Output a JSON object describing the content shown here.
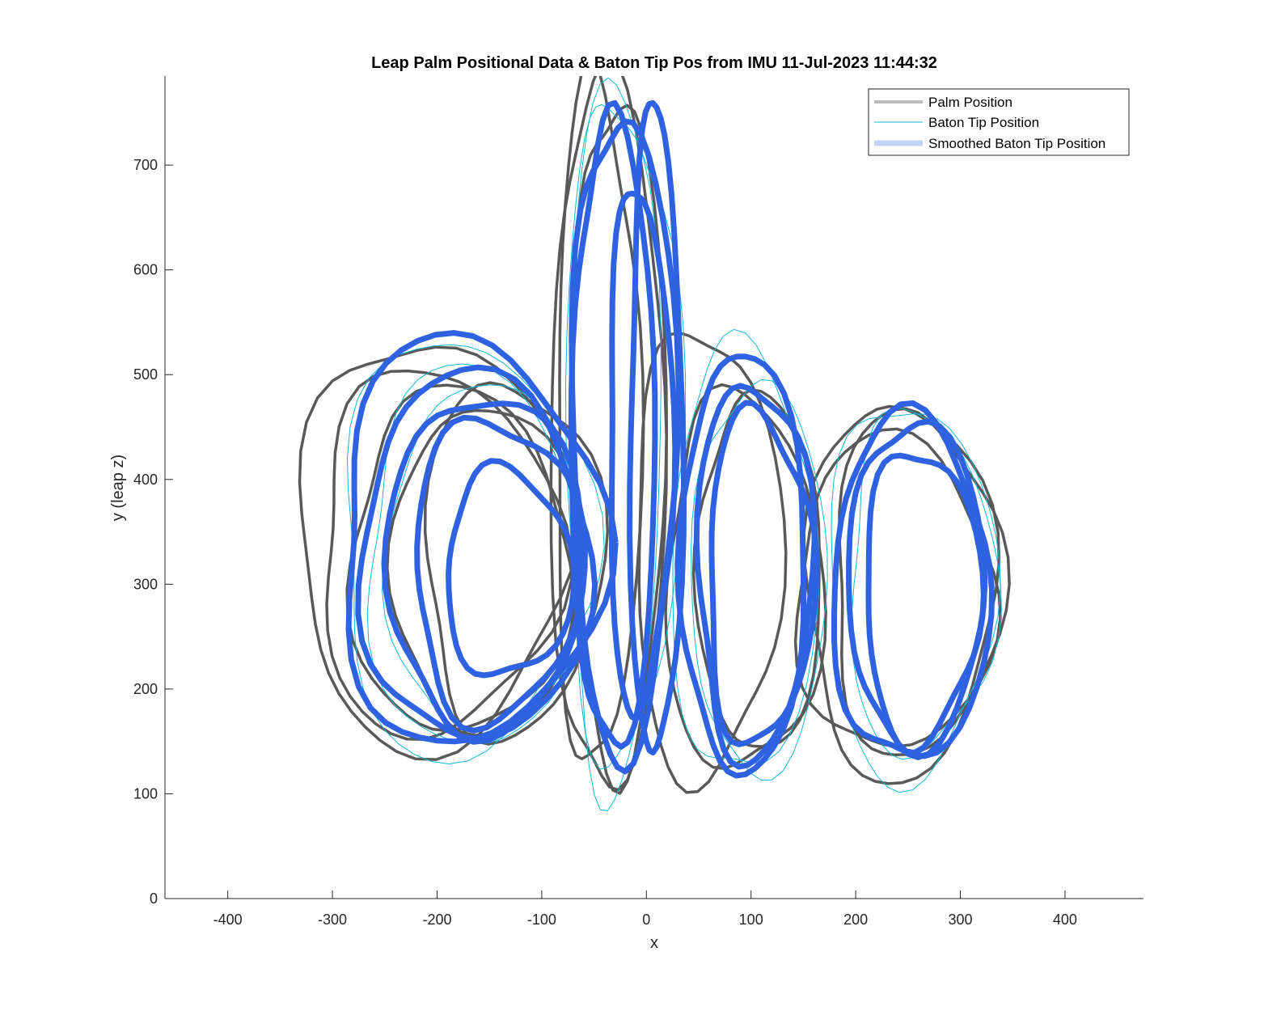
{
  "chart_data": {
    "type": "line",
    "title": "Leap Palm Positional Data & Baton Tip Pos from IMU 11-Jul-2023 11:44:32",
    "xlabel": "x",
    "ylabel": "y (leap z)",
    "xlim": [
      -460,
      475
    ],
    "ylim": [
      0,
      785
    ],
    "xticks": [
      -400,
      -300,
      -200,
      -100,
      0,
      100,
      200,
      300,
      400
    ],
    "yticks": [
      0,
      100,
      200,
      300,
      400,
      500,
      600,
      700
    ],
    "grid": false,
    "legend_position": "top-right",
    "series": [
      {
        "name": "Palm Position",
        "color": "#595959",
        "loops": [
          {
            "cx": -200,
            "cy": 340,
            "rx": 130,
            "ry": 195
          },
          {
            "cx": -195,
            "cy": 330,
            "rx": 115,
            "ry": 175
          },
          {
            "cx": -175,
            "cy": 320,
            "rx": 105,
            "ry": 165
          },
          {
            "cx": -150,
            "cy": 315,
            "rx": 90,
            "ry": 155
          },
          {
            "cx": -125,
            "cy": 325,
            "rx": 85,
            "ry": 170
          },
          {
            "cx": -45,
            "cy": 450,
            "rx": 40,
            "ry": 330
          },
          {
            "cx": -35,
            "cy": 440,
            "rx": 55,
            "ry": 340
          },
          {
            "cx": -25,
            "cy": 445,
            "rx": 45,
            "ry": 320
          },
          {
            "cx": 60,
            "cy": 330,
            "rx": 70,
            "ry": 215
          },
          {
            "cx": 95,
            "cy": 300,
            "rx": 75,
            "ry": 180
          },
          {
            "cx": 110,
            "cy": 310,
            "rx": 60,
            "ry": 170
          },
          {
            "cx": 245,
            "cy": 295,
            "rx": 90,
            "ry": 180
          },
          {
            "cx": 260,
            "cy": 300,
            "rx": 80,
            "ry": 165
          },
          {
            "cx": 240,
            "cy": 290,
            "rx": 95,
            "ry": 150
          }
        ]
      },
      {
        "name": "Baton Tip Position",
        "color": "#12b8d6",
        "loops": [
          {
            "cx": -170,
            "cy": 335,
            "rx": 120,
            "ry": 200
          },
          {
            "cx": -160,
            "cy": 325,
            "rx": 105,
            "ry": 180
          },
          {
            "cx": -150,
            "cy": 320,
            "rx": 95,
            "ry": 170
          },
          {
            "cx": -30,
            "cy": 440,
            "rx": 45,
            "ry": 335
          },
          {
            "cx": -20,
            "cy": 450,
            "rx": 55,
            "ry": 320
          },
          {
            "cx": 95,
            "cy": 320,
            "rx": 70,
            "ry": 205
          },
          {
            "cx": 110,
            "cy": 305,
            "rx": 65,
            "ry": 185
          },
          {
            "cx": 255,
            "cy": 295,
            "rx": 80,
            "ry": 180
          },
          {
            "cx": 265,
            "cy": 300,
            "rx": 70,
            "ry": 165
          }
        ]
      },
      {
        "name": "Smoothed Baton Tip Position",
        "color": "#2f62e0",
        "legend_color": "#c3d3f4",
        "loops": [
          {
            "cx": -165,
            "cy": 340,
            "rx": 125,
            "ry": 195
          },
          {
            "cx": -160,
            "cy": 325,
            "rx": 110,
            "ry": 175
          },
          {
            "cx": -150,
            "cy": 320,
            "rx": 95,
            "ry": 160
          },
          {
            "cx": -140,
            "cy": 315,
            "rx": 80,
            "ry": 145
          },
          {
            "cx": -130,
            "cy": 310,
            "rx": 60,
            "ry": 100
          },
          {
            "cx": -30,
            "cy": 440,
            "rx": 40,
            "ry": 300
          },
          {
            "cx": -20,
            "cy": 445,
            "rx": 50,
            "ry": 305
          },
          {
            "cx": -5,
            "cy": 430,
            "rx": 30,
            "ry": 250
          },
          {
            "cx": 10,
            "cy": 440,
            "rx": 25,
            "ry": 310
          },
          {
            "cx": 95,
            "cy": 320,
            "rx": 60,
            "ry": 200
          },
          {
            "cx": 105,
            "cy": 315,
            "rx": 55,
            "ry": 180
          },
          {
            "cx": 110,
            "cy": 305,
            "rx": 50,
            "ry": 160
          },
          {
            "cx": 255,
            "cy": 295,
            "rx": 75,
            "ry": 165
          },
          {
            "cx": 260,
            "cy": 300,
            "rx": 65,
            "ry": 155
          },
          {
            "cx": 265,
            "cy": 290,
            "rx": 55,
            "ry": 140
          }
        ]
      }
    ]
  }
}
